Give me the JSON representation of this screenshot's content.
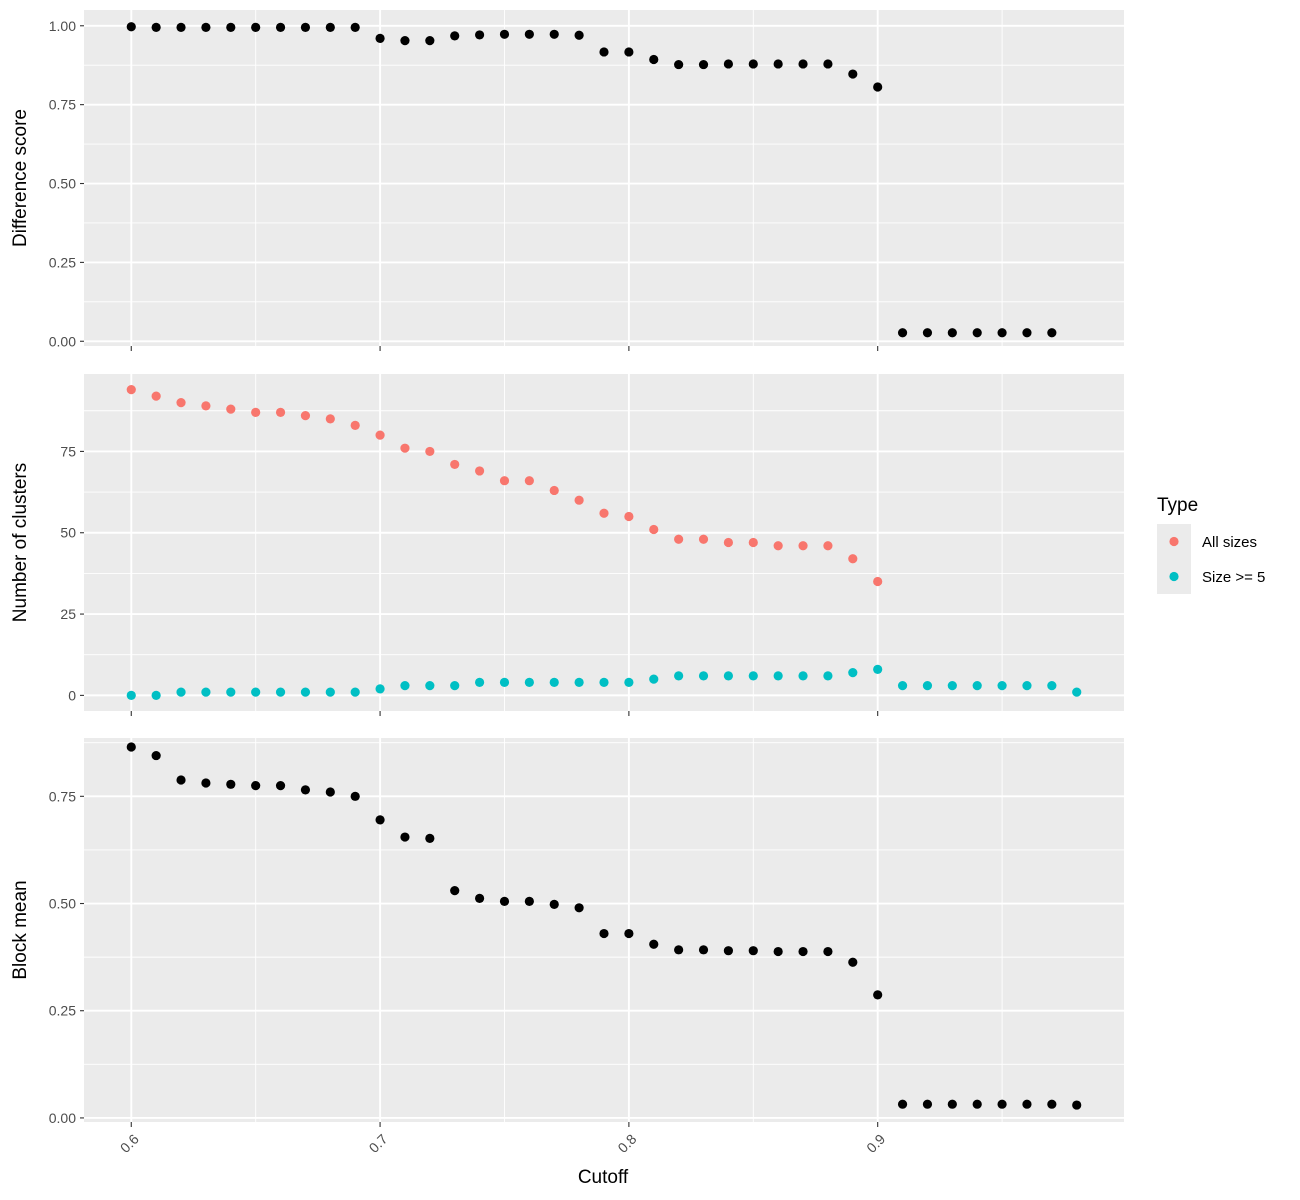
{
  "chart_data": [
    {
      "type": "scatter",
      "ylabel": "Difference score",
      "ylim": [
        -0.015,
        1.05
      ],
      "yticks": [
        0.0,
        0.25,
        0.5,
        0.75,
        1.0
      ],
      "ytick_labels": [
        "0.00",
        "0.25",
        "0.50",
        "0.75",
        "1.00"
      ],
      "series": [
        {
          "color": "#000000",
          "x": [
            0.6,
            0.61,
            0.62,
            0.63,
            0.64,
            0.65,
            0.66,
            0.67,
            0.68,
            0.69,
            0.7,
            0.71,
            0.72,
            0.73,
            0.74,
            0.75,
            0.76,
            0.77,
            0.78,
            0.79,
            0.8,
            0.81,
            0.82,
            0.83,
            0.84,
            0.85,
            0.86,
            0.87,
            0.88,
            0.89,
            0.9,
            0.91,
            0.92,
            0.93,
            0.94,
            0.95,
            0.96,
            0.97
          ],
          "y": [
            0.997,
            0.995,
            0.995,
            0.995,
            0.995,
            0.995,
            0.995,
            0.995,
            0.995,
            0.995,
            0.96,
            0.953,
            0.953,
            0.968,
            0.971,
            0.973,
            0.973,
            0.973,
            0.97,
            0.917,
            0.917,
            0.893,
            0.877,
            0.877,
            0.879,
            0.879,
            0.879,
            0.879,
            0.879,
            0.847,
            0.806,
            0.027,
            0.027,
            0.027,
            0.027,
            0.027,
            0.027,
            0.027
          ]
        }
      ]
    },
    {
      "type": "scatter",
      "ylabel": "Number of clusters",
      "ylim": [
        -4.8,
        98.8
      ],
      "yticks": [
        0,
        25,
        50,
        75
      ],
      "ytick_labels": [
        "0",
        "25",
        "50",
        "75"
      ],
      "series": [
        {
          "name": "All sizes",
          "color": "#F8766D",
          "x": [
            0.6,
            0.61,
            0.62,
            0.63,
            0.64,
            0.65,
            0.66,
            0.67,
            0.68,
            0.69,
            0.7,
            0.71,
            0.72,
            0.73,
            0.74,
            0.75,
            0.76,
            0.77,
            0.78,
            0.79,
            0.8,
            0.81,
            0.82,
            0.83,
            0.84,
            0.85,
            0.86,
            0.87,
            0.88,
            0.89,
            0.9
          ],
          "y": [
            94,
            92,
            90,
            89,
            88,
            87,
            87,
            86,
            85,
            83,
            80,
            76,
            75,
            71,
            69,
            66,
            66,
            63,
            60,
            56,
            55,
            51,
            48,
            48,
            47,
            47,
            46,
            46,
            46,
            42,
            35
          ]
        },
        {
          "name": "Size >= 5",
          "color": "#00BFC4",
          "x": [
            0.6,
            0.61,
            0.62,
            0.63,
            0.64,
            0.65,
            0.66,
            0.67,
            0.68,
            0.69,
            0.7,
            0.71,
            0.72,
            0.73,
            0.74,
            0.75,
            0.76,
            0.77,
            0.78,
            0.79,
            0.8,
            0.81,
            0.82,
            0.83,
            0.84,
            0.85,
            0.86,
            0.87,
            0.88,
            0.89,
            0.9,
            0.91,
            0.92,
            0.93,
            0.94,
            0.95,
            0.96,
            0.97,
            0.98
          ],
          "y": [
            0,
            0,
            1,
            1,
            1,
            1,
            1,
            1,
            1,
            1,
            2,
            3,
            3,
            3,
            4,
            4,
            4,
            4,
            4,
            4,
            4,
            5,
            6,
            6,
            6,
            6,
            6,
            6,
            6,
            7,
            8,
            3,
            3,
            3,
            3,
            3,
            3,
            3,
            1
          ]
        }
      ]
    },
    {
      "type": "scatter",
      "ylabel": "Block mean",
      "ylim": [
        -0.0095,
        0.886
      ],
      "yticks": [
        0.0,
        0.25,
        0.5,
        0.75
      ],
      "ytick_labels": [
        "0.00",
        "0.25",
        "0.50",
        "0.75"
      ],
      "series": [
        {
          "color": "#000000",
          "x": [
            0.6,
            0.61,
            0.62,
            0.63,
            0.64,
            0.65,
            0.66,
            0.67,
            0.68,
            0.69,
            0.7,
            0.71,
            0.72,
            0.73,
            0.74,
            0.75,
            0.76,
            0.77,
            0.78,
            0.79,
            0.8,
            0.81,
            0.82,
            0.83,
            0.84,
            0.85,
            0.86,
            0.87,
            0.88,
            0.89,
            0.9,
            0.91,
            0.92,
            0.93,
            0.94,
            0.95,
            0.96,
            0.97,
            0.98
          ],
          "y": [
            0.865,
            0.845,
            0.788,
            0.781,
            0.778,
            0.775,
            0.775,
            0.765,
            0.76,
            0.75,
            0.695,
            0.655,
            0.652,
            0.53,
            0.512,
            0.505,
            0.505,
            0.498,
            0.49,
            0.43,
            0.43,
            0.405,
            0.392,
            0.392,
            0.39,
            0.39,
            0.388,
            0.388,
            0.388,
            0.363,
            0.287,
            0.032,
            0.032,
            0.032,
            0.032,
            0.032,
            0.032,
            0.032,
            0.03
          ]
        }
      ]
    }
  ],
  "x_axis": {
    "label": "Cutoff",
    "range": [
      0.581,
      0.999
    ],
    "ticks": [
      0.6,
      0.7,
      0.8,
      0.9
    ],
    "tick_labels": [
      "0.6",
      "0.7",
      "0.8",
      "0.9"
    ],
    "tick_label_rotation_deg": -45
  },
  "legend": {
    "title": "Type",
    "position": "right",
    "items": [
      {
        "label": "All sizes",
        "color": "#F8766D"
      },
      {
        "label": "Size >= 5",
        "color": "#00BFC4"
      }
    ]
  },
  "theme": {
    "panel_background": "#EBEBEB",
    "grid_color": "#FFFFFF",
    "tick_label_color": "#4D4D4D",
    "grid": true
  }
}
